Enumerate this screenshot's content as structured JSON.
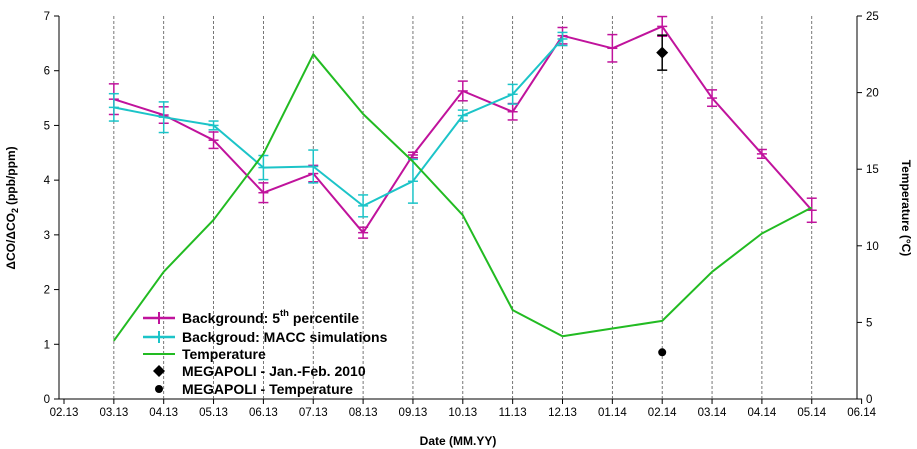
{
  "chart_data": {
    "type": "line",
    "xlabel": "Date (MM.YY)",
    "ylabel_left": "ΔCO/ΔCO",
    "ylabel_left_sub": "2",
    "ylabel_left_units": "(ppb/ppm)",
    "ylabel_right": "Temperature (°C)",
    "x_categories": [
      "02.13",
      "03.13",
      "04.13",
      "05.13",
      "06.13",
      "07.13",
      "08.13",
      "09.13",
      "10.13",
      "11.13",
      "12.13",
      "01.14",
      "02.14",
      "03.14",
      "04.14",
      "05.14",
      "06.14"
    ],
    "ylim_left": [
      0,
      7
    ],
    "yticks_left": [
      "0",
      "1",
      "2",
      "3",
      "4",
      "5",
      "6",
      "7"
    ],
    "ylim_right": [
      0,
      25
    ],
    "yticks_right": [
      "0",
      "5",
      "10",
      "15",
      "20",
      "25"
    ],
    "vertical_dashed_grid": true,
    "series": [
      {
        "name": "Background: 5",
        "name_sup": "th",
        "name_suffix": " percentile",
        "color": "#c0139c",
        "axis": "left",
        "x": [
          "03.13",
          "04.13",
          "05.13",
          "06.13",
          "07.13",
          "08.13",
          "09.13",
          "10.13",
          "11.13",
          "12.13",
          "01.14",
          "02.14",
          "03.14",
          "04.14",
          "05.14"
        ],
        "y": [
          5.48,
          5.19,
          4.73,
          3.77,
          4.12,
          3.04,
          4.46,
          5.63,
          5.25,
          6.64,
          6.41,
          6.81,
          5.5,
          4.48,
          3.45
        ],
        "err": [
          0.28,
          0.15,
          0.15,
          0.18,
          0.15,
          0.1,
          0.05,
          0.18,
          0.15,
          0.15,
          0.25,
          0.18,
          0.15,
          0.08,
          0.22
        ]
      },
      {
        "name": "Backgroud: MACC simulations",
        "color": "#1cc4c8",
        "axis": "left",
        "x": [
          "03.13",
          "04.13",
          "05.13",
          "06.13",
          "07.13",
          "08.13",
          "09.13",
          "10.13",
          "11.13",
          "12.13"
        ],
        "y": [
          5.33,
          5.15,
          5.0,
          4.23,
          4.25,
          3.53,
          3.98,
          5.18,
          5.57,
          6.58
        ],
        "err": [
          0.25,
          0.28,
          0.08,
          0.22,
          0.3,
          0.2,
          0.4,
          0.1,
          0.18,
          0.12
        ]
      },
      {
        "name": "Temperature",
        "color": "#22bb22",
        "axis": "right",
        "x": [
          "03.13",
          "04.13",
          "05.13",
          "06.13",
          "07.13",
          "08.13",
          "09.13",
          "10.13",
          "11.13",
          "12.13",
          "01.14",
          "02.14",
          "03.14",
          "04.14",
          "05.14"
        ],
        "y": [
          3.8,
          8.3,
          11.7,
          16.0,
          22.5,
          18.6,
          15.5,
          12.0,
          5.8,
          4.1,
          4.6,
          5.1,
          8.3,
          10.8,
          12.5
        ]
      },
      {
        "name": "MEGAPOLI - Jan.-Feb. 2010",
        "color": "#000000",
        "axis": "left",
        "marker": "diamond",
        "x": [
          "02.14"
        ],
        "y": [
          6.33
        ],
        "err": [
          0.32
        ]
      },
      {
        "name": "MEGAPOLI - Temperature",
        "color": "#000000",
        "axis": "right",
        "marker": "circle",
        "x": [
          "02.14"
        ],
        "y": [
          3.05
        ]
      }
    ]
  }
}
